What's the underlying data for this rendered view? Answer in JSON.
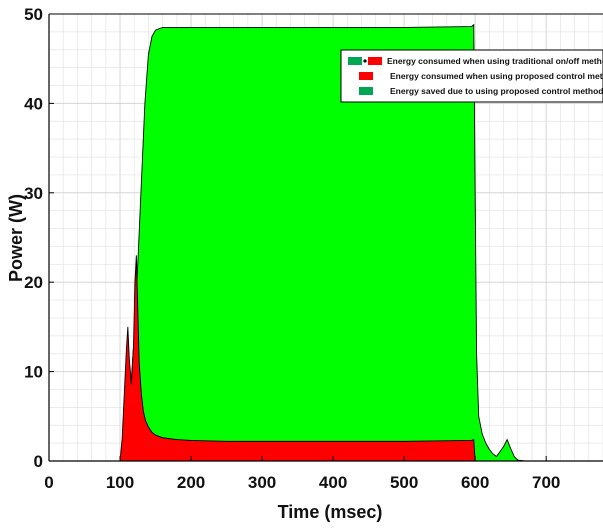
{
  "chart_data": {
    "type": "area",
    "xlabel": "Time (msec)",
    "ylabel": "Power (W)",
    "xlim": [
      0,
      780
    ],
    "ylim": [
      0,
      50
    ],
    "xticks": [
      0,
      100,
      200,
      300,
      400,
      500,
      600,
      700
    ],
    "yticks": [
      0,
      10,
      20,
      30,
      40,
      50
    ],
    "grid": true,
    "legend_position": "top-right",
    "colors": {
      "traditional_green": "#00a651",
      "proposed_red": "#ff0000",
      "saved_fill": "#00ff00",
      "outline": "#000000",
      "grid": "#e4e4e4"
    },
    "legend": [
      {
        "label": "Energy consumed when using traditional on/off metho",
        "swatch": "green-red"
      },
      {
        "label": "Energy consumed when using proposed control metho",
        "swatch": "red"
      },
      {
        "label": "Energy saved due to using proposed control method",
        "swatch": "green"
      }
    ],
    "series": [
      {
        "key": "traditional",
        "x": [
          0,
          100,
          103,
          108,
          115,
          120,
          125,
          130,
          135,
          140,
          145,
          150,
          160,
          200,
          300,
          400,
          500,
          595,
          598,
          600,
          602,
          605,
          610,
          615,
          620,
          625,
          630,
          640,
          645,
          650,
          655,
          660,
          670,
          700,
          780
        ],
        "y": [
          0,
          0,
          1.0,
          4.0,
          8.0,
          14.0,
          22.0,
          31.0,
          40.0,
          45.5,
          47.5,
          48.2,
          48.5,
          48.5,
          48.5,
          48.5,
          48.5,
          48.6,
          48.8,
          30.0,
          12.0,
          5.0,
          3.0,
          2.0,
          1.3,
          0.8,
          0.5,
          1.6,
          2.4,
          1.4,
          0.5,
          0.1,
          0,
          0,
          0
        ]
      },
      {
        "key": "proposed",
        "x": [
          0,
          100,
          103,
          106,
          109,
          111,
          113,
          116,
          119,
          121,
          123,
          125,
          127,
          130,
          133,
          136,
          140,
          145,
          150,
          160,
          180,
          200,
          250,
          300,
          400,
          500,
          595,
          598,
          600
        ],
        "y": [
          0,
          0,
          2.5,
          7.5,
          12.5,
          15.0,
          11.5,
          8.5,
          13.0,
          20.0,
          23.0,
          17.0,
          11.0,
          7.5,
          5.5,
          4.5,
          3.8,
          3.2,
          2.9,
          2.6,
          2.4,
          2.3,
          2.2,
          2.2,
          2.2,
          2.2,
          2.3,
          2.4,
          0
        ]
      }
    ]
  }
}
